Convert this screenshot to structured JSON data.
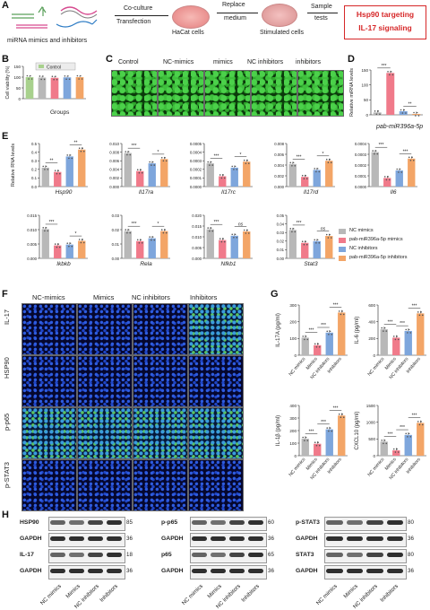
{
  "panel_labels": [
    "A",
    "B",
    "C",
    "D",
    "E",
    "F",
    "G",
    "H"
  ],
  "panelA": {
    "left_caption": "miRNA mimics and inhibitors",
    "step1_top": "Co-culture",
    "step1_bottom": "Transfection",
    "cells1": "HaCat cells",
    "step2_top": "Replace",
    "step2_bottom": "medium",
    "cells2": "Stimulated cells",
    "step3_top": "Sample",
    "step3_bottom": "tests",
    "outcome1": "Hsp90 targeting",
    "outcome2": "IL-17 signaling",
    "outcome_color": "#d62728"
  },
  "panelB": {
    "ylabel": "Cell viability (%)",
    "xlabel": "Groups",
    "legend": "Control",
    "yticks": [
      "0",
      "50",
      "100",
      "150"
    ]
  },
  "panelC": {
    "columns": [
      "Control",
      "NC-mimics",
      "mimics",
      "NC inhibitors",
      "inhibitors"
    ]
  },
  "panelD": {
    "ylabel": "Relative miRNA levels",
    "xlabel": "pab-miR396a-5p",
    "yticks": [
      "0",
      "50",
      "100",
      "150"
    ],
    "sig": [
      "***",
      "**"
    ]
  },
  "panelE": {
    "ylabel": "Relative RNA levels",
    "genes": [
      "Hsp90",
      "Il17ra",
      "Il17rc",
      "Il17rd",
      "Il6",
      "Ikbkb",
      "Rela",
      "Nfkb1",
      "Stat3"
    ],
    "legend": [
      "NC mimics",
      "pab-miR396a-5p mimics",
      "NC inhibitors",
      "pab-miR396a-5p inhibitors"
    ]
  },
  "panelF": {
    "columns": [
      "NC-mimics",
      "Mimics",
      "NC inhibitors",
      "Inhibitors"
    ],
    "rows": [
      "IL-17",
      "HSP90",
      "p-p65",
      "p-STAT3"
    ]
  },
  "panelG": {
    "xcats": [
      "NC mimics",
      "Mimics",
      "NC inhibitors",
      "Inhibitors"
    ]
  },
  "panelH": {
    "blot1_labels": [
      "HSP90",
      "GAPDH",
      "IL-17",
      "GAPDH"
    ],
    "blot1_kda": [
      "85",
      "36",
      "18",
      "36"
    ],
    "blot2_labels": [
      "p-p65",
      "GAPDH",
      "p65",
      "GAPDH"
    ],
    "blot2_kda": [
      "60",
      "36",
      "65",
      "36"
    ],
    "blot3_labels": [
      "p-STAT3",
      "GAPDH",
      "STAT3",
      "GAPDH"
    ],
    "blot3_kda": [
      "80",
      "36",
      "80",
      "36"
    ],
    "lanes": [
      "NC mimics",
      "Mimics",
      "NC inhibitors",
      "Inhibitors"
    ]
  },
  "colors": {
    "nc_mimics": "#b8b8b8",
    "mimics": "#f07a8a",
    "nc_inhibitors": "#7ea6dc",
    "inhibitors": "#f3a567",
    "control": "#a8d18d"
  },
  "chart_data": [
    {
      "panel": "B",
      "type": "bar",
      "ylabel": "Cell viability (%)",
      "xlabel": "Groups",
      "ylim": [
        0,
        150
      ],
      "yticks": [
        0,
        50,
        100,
        150
      ],
      "legend": [
        "Control"
      ],
      "values": [
        100,
        98,
        97,
        99,
        100
      ],
      "colors": [
        "#a8d18d",
        "#b8b8b8",
        "#f07a8a",
        "#7ea6dc",
        "#f3a567"
      ]
    },
    {
      "panel": "D",
      "type": "bar",
      "ylabel": "Relative miRNA levels",
      "xlabel": "pab-miR396a-5p",
      "ylim": [
        0,
        150
      ],
      "yticks": [
        0,
        50,
        100,
        150
      ],
      "values": [
        8,
        140,
        12,
        3
      ],
      "sig": [
        {
          "pair": [
            0,
            1
          ],
          "label": "***"
        },
        {
          "pair": [
            2,
            3
          ],
          "label": "**"
        }
      ]
    },
    {
      "panel": "E",
      "type": "bar",
      "ylabel": "Relative RNA levels",
      "series_names": [
        "NC mimics",
        "pab-miR396a-5p mimics",
        "NC inhibitors",
        "pab-miR396a-5p inhibitors"
      ],
      "subplots": [
        {
          "gene": "Hsp90",
          "ylim": [
            0,
            0.5
          ],
          "yticks": [
            "0.0",
            "0.1",
            "0.2",
            "0.3",
            "0.4",
            "0.5"
          ],
          "values": [
            0.22,
            0.17,
            0.35,
            0.43
          ],
          "sig": [
            "**",
            "**"
          ]
        },
        {
          "gene": "Il17ra",
          "ylim": [
            0,
            0.01
          ],
          "yticks": [
            "0.000",
            "0.002",
            "0.004",
            "0.006",
            "0.008",
            "0.010"
          ],
          "values": [
            0.0078,
            0.0036,
            0.0054,
            0.0064
          ],
          "sig": [
            "***",
            "*"
          ]
        },
        {
          "gene": "Il17rc",
          "ylim": [
            0,
            0.0005
          ],
          "yticks": [
            "0.0000",
            "0.0001",
            "0.0002",
            "0.0003",
            "0.0004",
            "0.0005"
          ],
          "values": [
            0.00027,
            0.00012,
            0.00022,
            0.00029
          ],
          "sig": [
            "***",
            "*"
          ]
        },
        {
          "gene": "Il17rd",
          "ylim": [
            0,
            0.008
          ],
          "yticks": [
            "0.000",
            "0.002",
            "0.004",
            "0.006",
            "0.008"
          ],
          "values": [
            0.0042,
            0.0018,
            0.0031,
            0.0048
          ],
          "sig": [
            "***",
            "*"
          ]
        },
        {
          "gene": "Il6",
          "ylim": [
            0,
            0.0004
          ],
          "yticks": [
            "0.0000",
            "0.0001",
            "0.0002",
            "0.0003",
            "0.0004"
          ],
          "values": [
            0.00032,
            8e-05,
            0.00015,
            0.00026
          ],
          "sig": [
            "***",
            "***"
          ]
        },
        {
          "gene": "Ikbkb",
          "ylim": [
            0,
            0.015
          ],
          "yticks": [
            "0.000",
            "0.005",
            "0.010",
            "0.015"
          ],
          "values": [
            0.0102,
            0.0045,
            0.0048,
            0.0061
          ],
          "sig": [
            "***",
            "*"
          ]
        },
        {
          "gene": "Rela",
          "ylim": [
            0,
            0.03
          ],
          "yticks": [
            "0.00",
            "0.01",
            "0.02",
            "0.03"
          ],
          "values": [
            0.019,
            0.012,
            0.014,
            0.019
          ],
          "sig": [
            "***",
            "*"
          ]
        },
        {
          "gene": "Nfkb1",
          "ylim": [
            0,
            0.02
          ],
          "yticks": [
            "0.000",
            "0.005",
            "0.010",
            "0.015",
            "0.020"
          ],
          "values": [
            0.0135,
            0.0085,
            0.0105,
            0.0125
          ],
          "sig": [
            "***",
            "ns"
          ]
        },
        {
          "gene": "Stat3",
          "ylim": [
            0,
            0.05
          ],
          "yticks": [
            "0.00",
            "0.01",
            "0.02",
            "0.03",
            "0.04",
            "0.05"
          ],
          "values": [
            0.033,
            0.018,
            0.02,
            0.026
          ],
          "sig": [
            "***",
            "ns"
          ]
        }
      ]
    },
    {
      "panel": "G",
      "type": "bar",
      "categories": [
        "NC mimics",
        "Mimics",
        "NC inhibitors",
        "Inhibitors"
      ],
      "subplots": [
        {
          "ylabel": "IL-17A (pg/ml)",
          "ylim": [
            0,
            300
          ],
          "yticks": [
            "0",
            "100",
            "200",
            "300"
          ],
          "values": [
            105,
            60,
            135,
            255
          ],
          "sig": [
            "***",
            "***",
            "***"
          ]
        },
        {
          "ylabel": "IL-6 (pg/ml)",
          "ylim": [
            0,
            600
          ],
          "yticks": [
            "0",
            "200",
            "400",
            "600"
          ],
          "values": [
            310,
            210,
            290,
            500
          ],
          "sig": [
            "***",
            "***",
            "***"
          ]
        },
        {
          "ylabel": "IL-1β (pg/ml)",
          "ylim": [
            0,
            400
          ],
          "yticks": [
            "0",
            "100",
            "200",
            "300",
            "400"
          ],
          "values": [
            135,
            95,
            210,
            320
          ],
          "sig": [
            "***",
            "***",
            "***"
          ]
        },
        {
          "ylabel": "CXCL10 (pg/ml)",
          "ylim": [
            0,
            1500
          ],
          "yticks": [
            "0",
            "500",
            "1000",
            "1500"
          ],
          "values": [
            420,
            160,
            620,
            980
          ],
          "sig": [
            "***",
            "***",
            "***"
          ]
        }
      ]
    }
  ]
}
